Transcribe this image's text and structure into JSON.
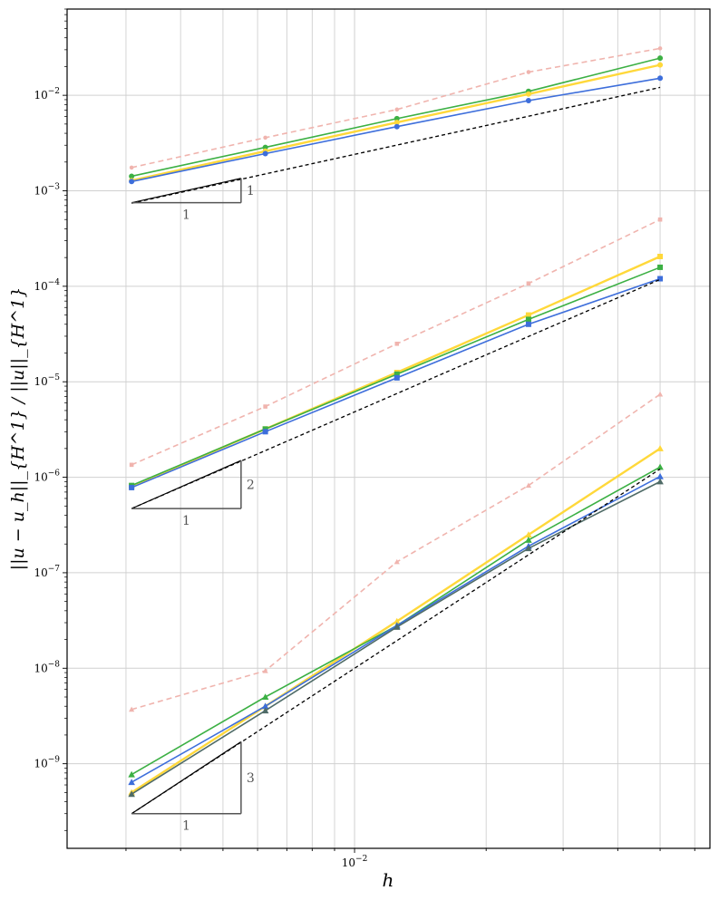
{
  "chart_data": {
    "type": "line",
    "title": "",
    "xscale": "log",
    "yscale": "log",
    "xlabel": "h",
    "ylabel": "||u − u_h||_{H^1} / ||u||_{H^1}",
    "xlim": [
      0.0022,
      0.065
    ],
    "ylim": [
      1.3e-10,
      0.08
    ],
    "grid": true,
    "legend": "none",
    "x_ticks": [
      {
        "value": 0.01,
        "label": "10−2"
      }
    ],
    "y_ticks": [
      {
        "value": 1e-09,
        "label": "10−9"
      },
      {
        "value": 1e-08,
        "label": "10−8"
      },
      {
        "value": 1e-07,
        "label": "10−7"
      },
      {
        "value": 1e-06,
        "label": "10−6"
      },
      {
        "value": 1e-05,
        "label": "10−5"
      },
      {
        "value": 0.0001,
        "label": "10−4"
      },
      {
        "value": 0.001,
        "label": "10−3"
      },
      {
        "value": 0.01,
        "label": "10−2"
      }
    ],
    "x": [
      0.00309,
      0.00625,
      0.0125,
      0.025,
      0.05
    ],
    "groups": [
      {
        "order": 1,
        "marker": "circle",
        "series": [
          {
            "name": "pink-dashed",
            "color": "#f0b4ae",
            "dashed": true,
            "values": [
              0.00175,
              0.0036,
              0.0071,
              0.0175,
              0.031
            ]
          },
          {
            "name": "green",
            "color": "#3cb044",
            "dashed": false,
            "values": [
              0.00142,
              0.00285,
              0.0057,
              0.011,
              0.0245
            ]
          },
          {
            "name": "yellow",
            "color": "#ffd83a",
            "dashed": false,
            "values": [
              0.00128,
              0.0026,
              0.0052,
              0.0103,
              0.0208
            ]
          },
          {
            "name": "blue",
            "color": "#3d6edb",
            "dashed": false,
            "values": [
              0.00125,
              0.00245,
              0.0047,
              0.0088,
              0.0151
            ]
          },
          {
            "name": "black-dashed",
            "color": "#000000",
            "dashed": true,
            "marker": "none",
            "values": [
              0.00074,
              null,
              null,
              null,
              0.0121
            ]
          }
        ]
      },
      {
        "order": 2,
        "marker": "square",
        "series": [
          {
            "name": "pink-dashed",
            "color": "#f0b4ae",
            "dashed": true,
            "values": [
              1.35e-06,
              5.5e-06,
              2.5e-05,
              0.000107,
              0.0005
            ]
          },
          {
            "name": "yellow",
            "color": "#ffd83a",
            "dashed": false,
            "values": [
              8e-07,
              3.2e-06,
              1.25e-05,
              5e-05,
              0.000205
            ]
          },
          {
            "name": "green",
            "color": "#3cb044",
            "dashed": false,
            "values": [
              8.2e-07,
              3.2e-06,
              1.2e-05,
              4.5e-05,
              0.000158
            ]
          },
          {
            "name": "blue",
            "color": "#3d6edb",
            "dashed": false,
            "values": [
              7.8e-07,
              3e-06,
              1.1e-05,
              4e-05,
              0.00012
            ]
          },
          {
            "name": "black-dashed",
            "color": "#000000",
            "dashed": true,
            "marker": "none",
            "values": [
              4.7e-07,
              null,
              null,
              null,
              0.000118
            ]
          }
        ]
      },
      {
        "order": 3,
        "marker": "triangle",
        "series": [
          {
            "name": "pink-dashed",
            "color": "#f0b4ae",
            "dashed": true,
            "values": [
              3.7e-09,
              9.4e-09,
              1.3e-07,
              8.2e-07,
              7.4e-06
            ]
          },
          {
            "name": "yellow",
            "color": "#ffd83a",
            "dashed": false,
            "values": [
              5e-10,
              4e-09,
              3.1e-08,
              2.5e-07,
              2e-06
            ]
          },
          {
            "name": "green",
            "color": "#3cb044",
            "dashed": false,
            "values": [
              7.7e-10,
              5e-09,
              2.8e-08,
              2.2e-07,
              1.28e-06
            ]
          },
          {
            "name": "blue",
            "color": "#3d6edb",
            "dashed": false,
            "values": [
              6.4e-10,
              4e-09,
              2.8e-08,
              1.9e-07,
              1.02e-06
            ]
          },
          {
            "name": "gray",
            "color": "#4f6b67",
            "dashed": false,
            "values": [
              4.8e-10,
              3.6e-09,
              2.7e-08,
              1.8e-07,
              9e-07
            ]
          },
          {
            "name": "black-dashed",
            "color": "#000000",
            "dashed": true,
            "marker": "none",
            "values": [
              3e-10,
              null,
              null,
              null,
              1.22e-06
            ]
          }
        ]
      }
    ],
    "slope_triangles": [
      {
        "x0": 0.00309,
        "x1": 0.0055,
        "y0": 0.00075,
        "y1": 0.00135,
        "slope_label": "1",
        "run_label": "1"
      },
      {
        "x0": 0.00309,
        "x1": 0.0055,
        "y0": 4.7e-07,
        "y1": 1.5e-06,
        "slope_label": "2",
        "run_label": "1"
      },
      {
        "x0": 0.00309,
        "x1": 0.0055,
        "y0": 3e-10,
        "y1": 1.7e-09,
        "slope_label": "3",
        "run_label": "1"
      }
    ]
  }
}
